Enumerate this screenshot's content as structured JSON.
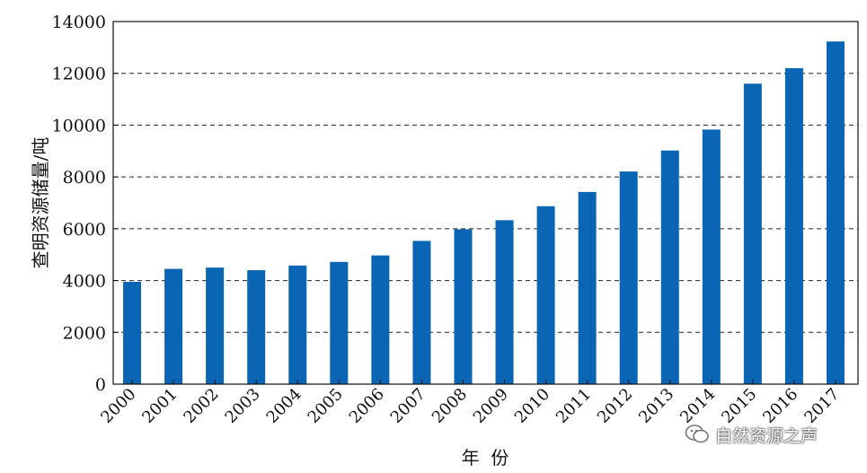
{
  "chart_data": {
    "type": "bar",
    "title": "",
    "xlabel": "年  份",
    "ylabel": "查明资源储量/吨",
    "ylim": [
      0,
      14000
    ],
    "yticks": [
      0,
      2000,
      4000,
      6000,
      8000,
      10000,
      12000,
      14000
    ],
    "grid": "horizontal-dashed",
    "bar_color": "#0a66b4",
    "categories": [
      "2000",
      "2001",
      "2002",
      "2003",
      "2004",
      "2005",
      "2006",
      "2007",
      "2008",
      "2009",
      "2010",
      "2011",
      "2012",
      "2013",
      "2014",
      "2015",
      "2016",
      "2017"
    ],
    "values": [
      3950,
      4450,
      4500,
      4400,
      4580,
      4720,
      4970,
      5530,
      5980,
      6330,
      6870,
      7420,
      8210,
      9020,
      9830,
      11600,
      12200,
      13230
    ]
  },
  "watermark": {
    "text": "自然资源之声",
    "icon": "wechat-icon"
  }
}
